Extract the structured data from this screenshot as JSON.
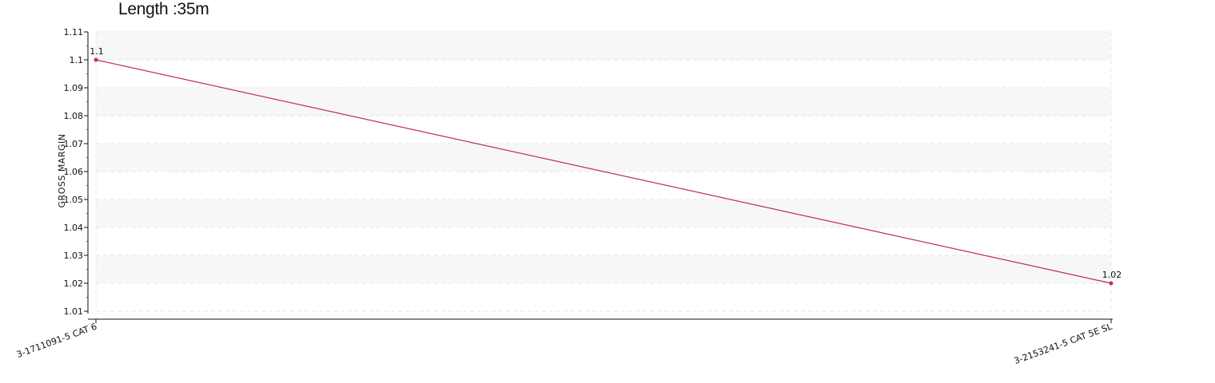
{
  "chart_data": {
    "type": "line",
    "title": "Length :35m",
    "ylabel": "GROSS MARGIN",
    "xlabel": "",
    "categories": [
      "3-1711091-5 CAT 6",
      "3-2153241-5 CAT 5E SL"
    ],
    "series": [
      {
        "values": [
          1.1,
          1.02
        ],
        "data_labels": [
          "1.1",
          "1.02"
        ],
        "color": "#c0304a"
      }
    ],
    "ylim": [
      1.01,
      1.11
    ],
    "yticks": [
      "1.01",
      "1.02",
      "1.03",
      "1.04",
      "1.05",
      "1.06",
      "1.07",
      "1.08",
      "1.09",
      "1.1",
      "1.11"
    ],
    "grid": true,
    "band_color": "#f7f7f7",
    "grid_color": "#e6e6e6"
  }
}
